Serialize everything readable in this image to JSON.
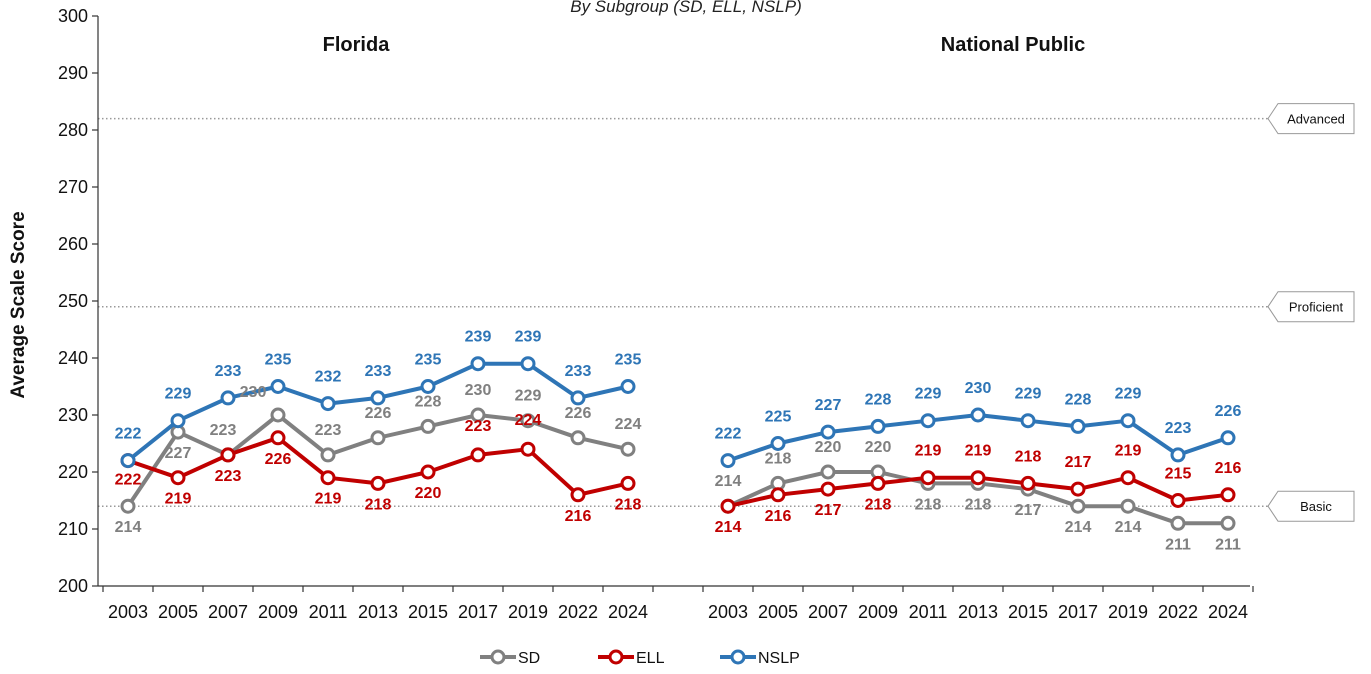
{
  "chart_data": {
    "type": "line",
    "subtitle": "By Subgroup (SD, ELL, NSLP)",
    "ylabel": "Average Scale Score",
    "ylim": [
      200,
      300
    ],
    "yticks": [
      200,
      210,
      220,
      230,
      240,
      250,
      260,
      270,
      280,
      290,
      300
    ],
    "categories": [
      "2003",
      "2005",
      "2007",
      "2009",
      "2011",
      "2013",
      "2015",
      "2017",
      "2019",
      "2022",
      "2024"
    ],
    "colors": {
      "SD": "#808080",
      "ELL": "#C00000",
      "NSLP": "#2E75B6"
    },
    "legend": {
      "position": "bottom",
      "entries": [
        "SD",
        "ELL",
        "NSLP"
      ]
    },
    "reference_lines": [
      {
        "label": "Advanced",
        "value": 282
      },
      {
        "label": "Proficient",
        "value": 249
      },
      {
        "label": "Basic",
        "value": 214
      }
    ],
    "panels": [
      {
        "title": "Florida",
        "series": [
          {
            "name": "SD",
            "values": [
              214,
              227,
              223,
              230,
              223,
              226,
              228,
              230,
              229,
              226,
              224
            ]
          },
          {
            "name": "ELL",
            "values": [
              222,
              219,
              223,
              226,
              219,
              218,
              220,
              223,
              224,
              216,
              218
            ]
          },
          {
            "name": "NSLP",
            "values": [
              222,
              229,
              233,
              235,
              232,
              233,
              235,
              239,
              239,
              233,
              235
            ]
          }
        ]
      },
      {
        "title": "National Public",
        "series": [
          {
            "name": "SD",
            "values": [
              214,
              218,
              220,
              220,
              218,
              218,
              217,
              214,
              214,
              211,
              211
            ]
          },
          {
            "name": "ELL",
            "values": [
              214,
              216,
              217,
              218,
              219,
              219,
              218,
              217,
              219,
              215,
              216
            ]
          },
          {
            "name": "NSLP",
            "values": [
              222,
              225,
              227,
              228,
              229,
              230,
              229,
              228,
              229,
              223,
              226
            ]
          }
        ]
      }
    ]
  }
}
